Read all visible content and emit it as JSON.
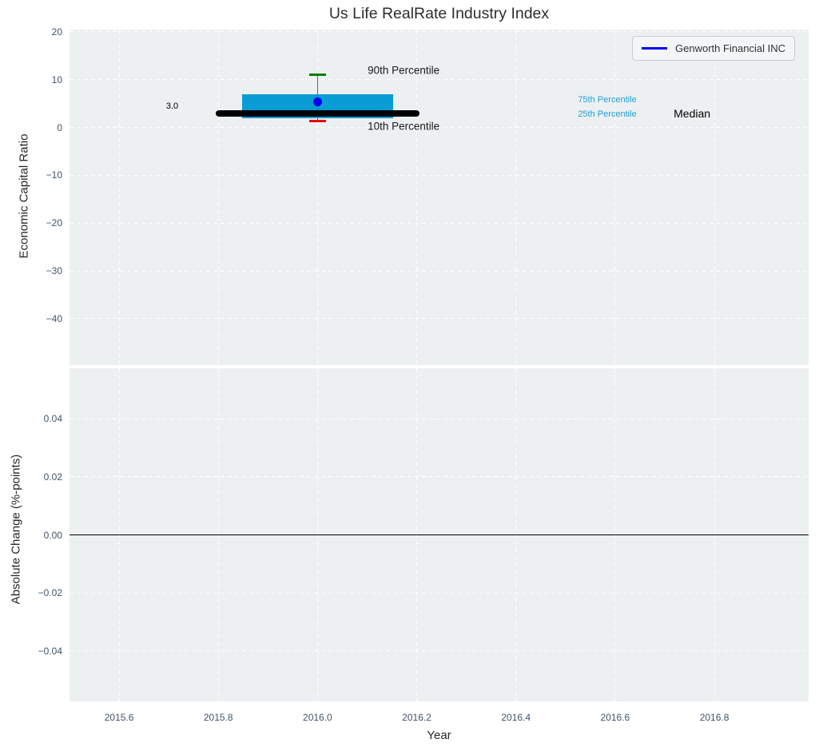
{
  "title": "Us Life RealRate Industry Index",
  "legend": {
    "label": "Genworth Financial INC",
    "line_color": "#0000ff"
  },
  "colors": {
    "axes_background": "#ecf0f1",
    "grid": "#ffffff",
    "box_fill": "#0a9cd4",
    "percentile_text": "#1f9fd4",
    "median_line": "#000000",
    "whisker": "#666666",
    "cap_90th": "#007d00",
    "cap_10th": "#ee0000",
    "company_point": "#0000ee",
    "zero_line": "#000000",
    "tick_text": "#415469"
  },
  "chart_data": [
    {
      "type": "boxplot",
      "title": "Us Life RealRate Industry Index",
      "ylabel": "Economic Capital Ratio",
      "xlim": [
        2015.5,
        2016.99
      ],
      "ylim": [
        -49.7,
        20.5
      ],
      "grid": true,
      "xticks": [
        {
          "v": 2015.6,
          "label": "2015.6"
        },
        {
          "v": 2015.8,
          "label": "2015.8"
        },
        {
          "v": 2016.0,
          "label": "2016.0"
        },
        {
          "v": 2016.2,
          "label": "2016.2"
        },
        {
          "v": 2016.4,
          "label": "2016.4"
        },
        {
          "v": 2016.6,
          "label": "2016.6"
        },
        {
          "v": 2016.8,
          "label": "2016.8"
        }
      ],
      "xticklabels_visible": false,
      "yticks": [
        {
          "v": 20,
          "label": "20"
        },
        {
          "v": 10,
          "label": "10"
        },
        {
          "v": 0,
          "label": "0"
        },
        {
          "v": -10,
          "label": "−10"
        },
        {
          "v": -20,
          "label": "−20"
        },
        {
          "v": -30,
          "label": "−30"
        },
        {
          "v": -40,
          "label": "−40"
        }
      ],
      "box": {
        "x": 2016.0,
        "median": 3.0,
        "q1": 1.9,
        "q3": 7.0,
        "p10": 1.3,
        "p90": 11.0,
        "box_half_width": 0.152,
        "median_half_width": 0.205,
        "cap_half_width": 0.0165
      },
      "company_point": {
        "name": "Genworth Financial INC",
        "x": 2016.0,
        "y": 5.4
      },
      "annotations": [
        {
          "text": "3.0",
          "x": 2015.707,
          "y": 4.45,
          "color": "#000000",
          "size": 11,
          "anchor": "center"
        },
        {
          "text": "90th Percentile",
          "x": 2016.101,
          "y": 12.0,
          "color": "#1a1a1a",
          "size": 13.5,
          "anchor": "left"
        },
        {
          "text": "10th Percentile",
          "x": 2016.101,
          "y": 0.3,
          "color": "#1a1a1a",
          "size": 13.5,
          "anchor": "left"
        },
        {
          "text": "75th Percentile",
          "x": 2016.525,
          "y": 5.8,
          "color": "#1f9fd4",
          "size": 11,
          "anchor": "left"
        },
        {
          "text": "25th Percentile",
          "x": 2016.525,
          "y": 2.8,
          "color": "#1f9fd4",
          "size": 11,
          "anchor": "left"
        },
        {
          "text": "Median",
          "x": 2016.718,
          "y": 2.95,
          "color": "#000000",
          "size": 14,
          "anchor": "left"
        }
      ]
    },
    {
      "type": "line",
      "ylabel": "Absolute Change (%-points)",
      "xlabel": "Year",
      "xlim": [
        2015.5,
        2016.99
      ],
      "ylim": [
        -0.0575,
        0.0575
      ],
      "grid": true,
      "hline": 0.0,
      "xticks": [
        {
          "v": 2015.6,
          "label": "2015.6"
        },
        {
          "v": 2015.8,
          "label": "2015.8"
        },
        {
          "v": 2016.0,
          "label": "2016.0"
        },
        {
          "v": 2016.2,
          "label": "2016.2"
        },
        {
          "v": 2016.4,
          "label": "2016.4"
        },
        {
          "v": 2016.6,
          "label": "2016.6"
        },
        {
          "v": 2016.8,
          "label": "2016.8"
        }
      ],
      "xticklabels_visible": true,
      "yticks": [
        {
          "v": 0.04,
          "label": "0.04"
        },
        {
          "v": 0.02,
          "label": "0.02"
        },
        {
          "v": 0.0,
          "label": "0.00"
        },
        {
          "v": -0.02,
          "label": "−0.02"
        },
        {
          "v": -0.04,
          "label": "−0.04"
        }
      ],
      "series": []
    }
  ]
}
